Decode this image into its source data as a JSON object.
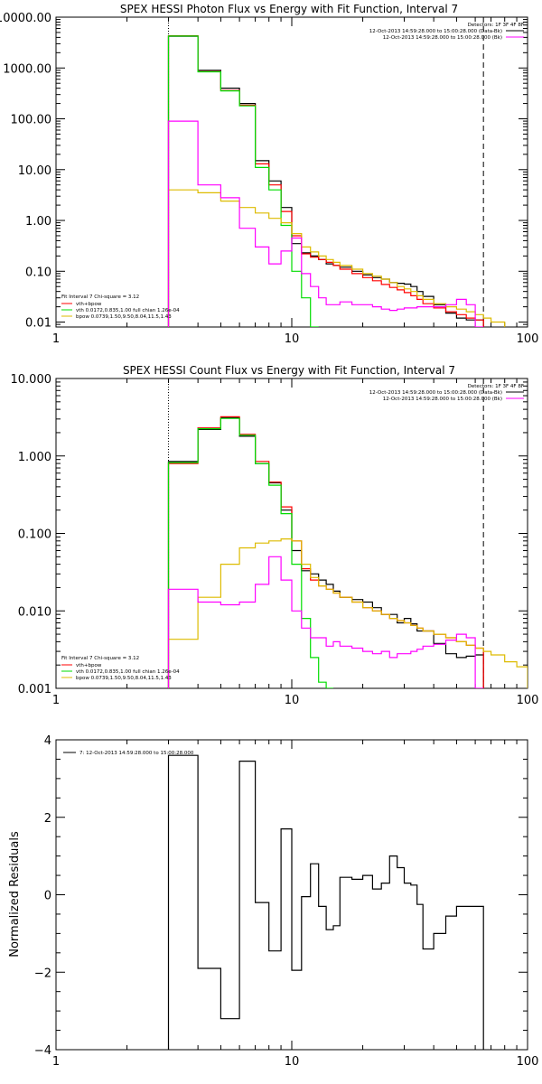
{
  "colors": {
    "data": "#000000",
    "total": "#ff0000",
    "vth": "#00dd00",
    "bpow": "#ddbb00",
    "bk": "#ff00ff"
  },
  "chart_data": [
    {
      "type": "line",
      "title": "SPEX HESSI Photon Flux vs Energy with Fit Function, Interval 7",
      "xscale": "log",
      "yscale": "log",
      "xlim": [
        1,
        100
      ],
      "ylim": [
        0.008,
        10000
      ],
      "x_ticks": [
        "1",
        "10",
        "100"
      ],
      "y_ticks": [
        {
          "value": 0.01,
          "label": "0.01"
        },
        {
          "value": 0.1,
          "label": "0.10"
        },
        {
          "value": 1,
          "label": "1.00"
        },
        {
          "value": 10,
          "label": "10.00"
        },
        {
          "value": 100,
          "label": "100.00"
        },
        {
          "value": 1000,
          "label": "1000.00"
        },
        {
          "value": 10000,
          "label": "10000.00"
        }
      ],
      "vlines": [
        {
          "x": 3,
          "style": "dotted"
        },
        {
          "x": 65,
          "style": "dashed"
        }
      ],
      "info_lines": [
        "Detectors: 1F 3F 4F 8F",
        "12-Oct-2013 14:59:28.000 to 15:00:28.000 (Data-Bk)",
        "12-Oct-2013 14:59:28.000 to 15:00:28.000 (Bk)"
      ],
      "fit_lines": [
        "Fit Interval  7   Chi-square = 3.12",
        "vth+bpow",
        "vth 0.0172,0.835,1.00  full chian 1.26e-04",
        "bpow 0.0739,1.50,9.50,8.04,11.5,1.43"
      ],
      "edges": [
        3,
        4,
        5,
        6,
        7,
        8,
        9,
        10,
        11,
        12,
        13,
        14,
        15,
        16,
        18,
        20,
        22,
        24,
        26,
        28,
        30,
        32,
        34,
        36,
        40,
        45,
        50,
        55,
        60,
        65,
        70,
        80
      ],
      "series": [
        {
          "name": "Data-Bk",
          "color": "#000000",
          "values": [
            4200,
            900,
            400,
            200,
            15,
            6,
            1.8,
            0.35,
            0.23,
            0.2,
            0.17,
            0.14,
            0.13,
            0.12,
            0.1,
            0.085,
            0.075,
            0.07,
            0.06,
            0.058,
            0.056,
            0.05,
            0.04,
            0.032,
            0.022,
            0.015,
            0.012,
            0.011,
            0.011,
            null,
            null
          ]
        },
        {
          "name": "vth+bpow",
          "color": "#ff0000",
          "values": [
            4300,
            850,
            360,
            185,
            13,
            5,
            1.5,
            0.5,
            0.22,
            0.19,
            0.17,
            0.15,
            0.13,
            0.11,
            0.09,
            0.075,
            0.065,
            0.055,
            0.048,
            0.043,
            0.038,
            0.033,
            0.028,
            0.023,
            0.019,
            0.016,
            0.014,
            0.012,
            0.011,
            null,
            null
          ]
        },
        {
          "name": "vth",
          "color": "#00dd00",
          "values": [
            4250,
            840,
            355,
            180,
            11,
            4,
            0.8,
            0.1,
            0.03,
            0.008,
            null,
            null,
            null,
            null,
            null,
            null,
            null,
            null,
            null,
            null,
            null,
            null,
            null,
            null,
            null,
            null,
            null,
            null,
            null,
            null,
            null
          ]
        },
        {
          "name": "bpow",
          "color": "#ddbb00",
          "values": [
            4,
            3.5,
            2.4,
            1.8,
            1.4,
            1.1,
            0.9,
            0.55,
            0.3,
            0.24,
            0.2,
            0.17,
            0.15,
            0.13,
            0.11,
            0.09,
            0.08,
            0.07,
            0.06,
            0.05,
            0.045,
            0.04,
            0.033,
            0.028,
            0.023,
            0.02,
            0.018,
            0.016,
            0.014,
            0.012,
            0.01
          ]
        },
        {
          "name": "Bk",
          "color": "#ff00ff",
          "values": [
            90,
            5,
            2.8,
            0.7,
            0.3,
            0.14,
            0.25,
            0.45,
            0.09,
            0.05,
            0.03,
            0.022,
            0.022,
            0.025,
            0.022,
            0.022,
            0.02,
            0.018,
            0.017,
            0.018,
            0.019,
            0.019,
            0.02,
            0.02,
            0.02,
            0.022,
            0.028,
            0.022,
            0.008,
            null,
            null
          ]
        }
      ]
    },
    {
      "type": "line",
      "title": "SPEX HESSI Count Flux vs Energy with Fit Function, Interval 7",
      "xscale": "log",
      "yscale": "log",
      "xlim": [
        1,
        100
      ],
      "ylim": [
        0.001,
        10
      ],
      "x_ticks": [
        "1",
        "10",
        "100"
      ],
      "y_ticks": [
        {
          "value": 0.001,
          "label": "0.001"
        },
        {
          "value": 0.01,
          "label": "0.010"
        },
        {
          "value": 0.1,
          "label": "0.100"
        },
        {
          "value": 1,
          "label": "1.000"
        },
        {
          "value": 10,
          "label": "10.000"
        }
      ],
      "vlines": [
        {
          "x": 3,
          "style": "dotted"
        },
        {
          "x": 65,
          "style": "dashed"
        }
      ],
      "info_lines": [
        "Detectors: 1F 3F 4F 8F",
        "12-Oct-2013 14:59:28.000 to 15:00:28.000 (Data-Bk)",
        "12-Oct-2013 14:59:28.000 to 15:00:28.000 (Bk)"
      ],
      "fit_lines": [
        "Fit Interval  7   Chi-square = 3.12",
        "vth+bpow",
        "vth 0.0172,0.835,1.00  full chian 1.26e-04",
        "bpow 0.0739,1.50,9.50,8.04,11.5,1.43"
      ],
      "edges": [
        3,
        4,
        5,
        6,
        7,
        8,
        9,
        10,
        11,
        12,
        13,
        14,
        15,
        16,
        18,
        20,
        22,
        24,
        26,
        28,
        30,
        32,
        34,
        36,
        40,
        45,
        50,
        55,
        60,
        65,
        70,
        80,
        90,
        100
      ],
      "series": [
        {
          "name": "Data-Bk",
          "color": "#000000",
          "values": [
            0.85,
            2.2,
            3.1,
            1.8,
            0.8,
            0.45,
            0.2,
            0.06,
            0.033,
            0.03,
            0.025,
            0.022,
            0.018,
            0.015,
            0.014,
            0.013,
            0.011,
            0.009,
            0.009,
            0.007,
            0.008,
            0.0068,
            0.0055,
            0.0055,
            0.0038,
            0.0028,
            0.0025,
            0.0026,
            0.0027,
            null,
            null,
            null,
            null
          ]
        },
        {
          "name": "vth+bpow",
          "color": "#ff0000",
          "values": [
            0.8,
            2.3,
            3.2,
            1.9,
            0.85,
            0.46,
            0.22,
            0.08,
            0.035,
            0.025,
            0.021,
            0.019,
            0.017,
            0.015,
            0.013,
            0.011,
            0.01,
            0.009,
            0.008,
            0.0075,
            0.007,
            0.0065,
            0.006,
            0.0055,
            0.005,
            0.0045,
            0.004,
            0.0036,
            0.0033,
            null,
            null,
            null,
            null
          ]
        },
        {
          "name": "vth",
          "color": "#00dd00",
          "values": [
            0.82,
            2.25,
            3.05,
            1.85,
            0.8,
            0.42,
            0.18,
            0.04,
            0.008,
            0.0025,
            0.0012,
            0.0008,
            null,
            null,
            null,
            null,
            null,
            null,
            null,
            null,
            null,
            null,
            null,
            null,
            null,
            null,
            null,
            null,
            null,
            null,
            null,
            null,
            null
          ]
        },
        {
          "name": "bpow",
          "color": "#ddbb00",
          "values": [
            0.0043,
            0.015,
            0.04,
            0.065,
            0.075,
            0.08,
            0.085,
            0.08,
            0.04,
            0.027,
            0.021,
            0.019,
            0.017,
            0.015,
            0.013,
            0.011,
            0.01,
            0.009,
            0.008,
            0.0075,
            0.007,
            0.0065,
            0.006,
            0.0055,
            0.005,
            0.0045,
            0.004,
            0.0036,
            0.0033,
            0.003,
            0.0027,
            0.0022,
            0.0019
          ]
        },
        {
          "name": "Bk",
          "color": "#ff00ff",
          "values": [
            0.019,
            0.013,
            0.012,
            0.013,
            0.022,
            0.05,
            0.025,
            0.01,
            0.006,
            0.0045,
            0.0045,
            0.0035,
            0.004,
            0.0035,
            0.0033,
            0.003,
            0.0028,
            0.003,
            0.0025,
            0.0028,
            0.0028,
            0.003,
            0.0032,
            0.0035,
            0.0037,
            0.0042,
            0.005,
            0.0045,
            0.001,
            null,
            null,
            null,
            null
          ]
        }
      ]
    },
    {
      "type": "line",
      "title": "",
      "xscale": "log",
      "yscale": "linear",
      "xlim": [
        1,
        100
      ],
      "ylim": [
        -4,
        4
      ],
      "ylabel": "Normalized Residuals",
      "x_ticks": [
        "1",
        "10",
        "100"
      ],
      "y_ticks": [
        {
          "value": -4,
          "label": "−4"
        },
        {
          "value": -2,
          "label": "−2"
        },
        {
          "value": 0,
          "label": "0"
        },
        {
          "value": 2,
          "label": "2"
        },
        {
          "value": 4,
          "label": "4"
        }
      ],
      "legend": "7: 12-Oct-2013 14:59:28.000 to 15:00:28.000",
      "edges": [
        3,
        4,
        5,
        6,
        7,
        8,
        9,
        10,
        11,
        12,
        13,
        14,
        15,
        16,
        18,
        20,
        22,
        24,
        26,
        28,
        30,
        32,
        34,
        36,
        40,
        45,
        50,
        55,
        60,
        65
      ],
      "series": [
        {
          "name": "",
          "color": "#000000",
          "values": [
            3.6,
            -1.9,
            -3.2,
            3.45,
            -0.2,
            -1.45,
            1.7,
            -1.95,
            -0.05,
            0.8,
            -0.3,
            -0.9,
            -0.8,
            0.45,
            0.4,
            0.5,
            0.15,
            0.3,
            1.0,
            0.7,
            0.3,
            0.25,
            -0.25,
            -1.4,
            -1.0,
            -0.55,
            -0.3,
            -0.3,
            -0.3
          ]
        }
      ]
    }
  ]
}
